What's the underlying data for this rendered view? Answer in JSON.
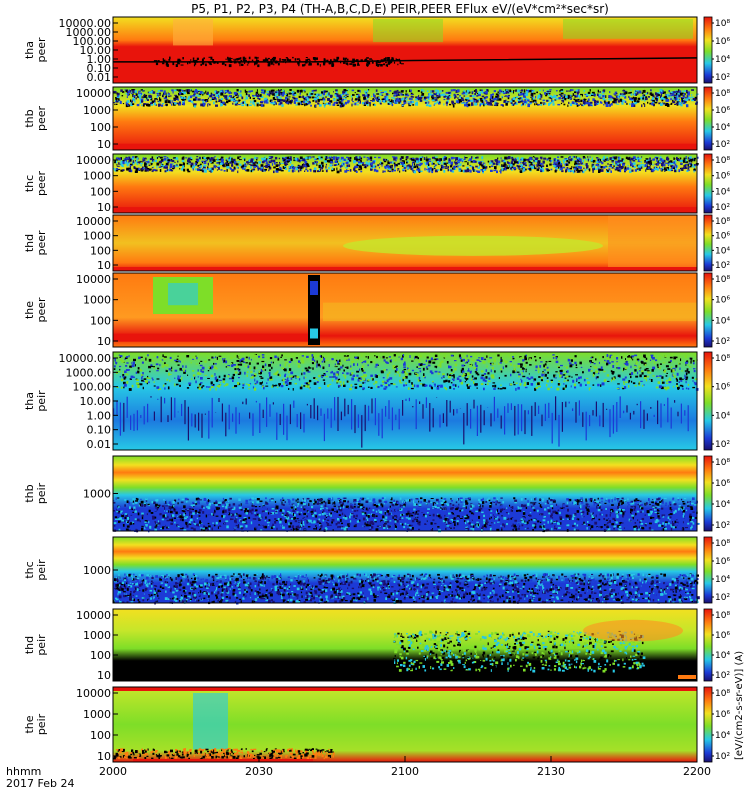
{
  "chart_data": {
    "type": "heatmap",
    "title": "P5, P1, P2, P3, P4 (TH-A,B,C,D,E) PEIR,PEER EFlux eV/(eV*cm²*sec*sr)",
    "units_label": "[eV/(cm2-s-sr-eV)] (A)",
    "x": {
      "ticks": [
        "2000",
        "2030",
        "2100",
        "2130",
        "2200"
      ],
      "label_line1": "hhmm",
      "label_line2": "2017 Feb 24"
    },
    "colorbar_ticks": [
      "10²",
      "10⁴",
      "10⁶",
      "10⁸"
    ],
    "panels": [
      {
        "probe": "tha",
        "species": "peer",
        "ylabel_top": "tha",
        "ylabel_bottom": "peer",
        "yticks": [
          "10000.00",
          "1000.00",
          "100.00",
          "10.00",
          "1.00",
          "0.10",
          "0.01"
        ]
      },
      {
        "probe": "thb",
        "species": "peer",
        "ylabel_top": "thb",
        "ylabel_bottom": "peer",
        "yticks": [
          "10000",
          "1000",
          "100",
          "10"
        ]
      },
      {
        "probe": "thc",
        "species": "peer",
        "ylabel_top": "thc",
        "ylabel_bottom": "peer",
        "yticks": [
          "10000",
          "1000",
          "100",
          "10"
        ]
      },
      {
        "probe": "thd",
        "species": "peer",
        "ylabel_top": "thd",
        "ylabel_bottom": "peer",
        "yticks": [
          "10000",
          "1000",
          "100",
          "10"
        ]
      },
      {
        "probe": "the",
        "species": "peer",
        "ylabel_top": "the",
        "ylabel_bottom": "peer",
        "yticks": [
          "10000",
          "1000",
          "100",
          "10"
        ]
      },
      {
        "probe": "tha",
        "species": "peir",
        "ylabel_top": "tha",
        "ylabel_bottom": "peir",
        "yticks": [
          "10000.00",
          "1000.00",
          "100.00",
          "10.00",
          "1.00",
          "0.10",
          "0.01"
        ]
      },
      {
        "probe": "thb",
        "species": "peir",
        "ylabel_top": "thb",
        "ylabel_bottom": "peir",
        "yticks": [
          "1000"
        ]
      },
      {
        "probe": "thc",
        "species": "peir",
        "ylabel_top": "thc",
        "ylabel_bottom": "peir",
        "yticks": [
          "1000"
        ]
      },
      {
        "probe": "thd",
        "species": "peir",
        "ylabel_top": "thd",
        "ylabel_bottom": "peir",
        "yticks": [
          "10000",
          "1000",
          "100",
          "10"
        ]
      },
      {
        "probe": "the",
        "species": "peir",
        "ylabel_top": "the",
        "ylabel_bottom": "peir",
        "yticks": [
          "10000",
          "1000",
          "100",
          "10"
        ]
      }
    ],
    "colors": {
      "red": "#e8140c",
      "orange": "#ff7a10",
      "yellow": "#f2e020",
      "green": "#7ede28",
      "cyan": "#27c9e6",
      "blue": "#1c3ad6",
      "navy": "#1a1070",
      "black": "#000000"
    }
  }
}
